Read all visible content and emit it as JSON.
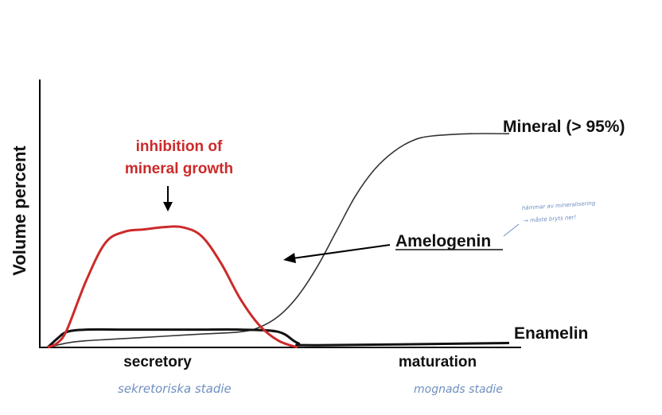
{
  "chart_data": {
    "type": "line",
    "ylabel": "Volume percent",
    "xlabel": "",
    "x_categories": [
      "secretory",
      "maturation"
    ],
    "ylim": [
      0,
      100
    ],
    "grid": false,
    "series": [
      {
        "name": "Mineral (> 95%)",
        "color": "#333333",
        "points": [
          [
            0,
            0
          ],
          [
            1,
            2
          ],
          [
            2,
            3
          ],
          [
            4,
            4
          ],
          [
            6,
            5
          ],
          [
            8,
            6
          ],
          [
            10,
            7
          ],
          [
            11,
            9
          ],
          [
            12,
            14
          ],
          [
            13,
            23
          ],
          [
            14,
            36
          ],
          [
            15,
            52
          ],
          [
            16,
            68
          ],
          [
            17,
            80
          ],
          [
            18,
            88
          ],
          [
            19,
            93
          ],
          [
            20,
            95
          ],
          [
            22,
            96
          ],
          [
            24,
            96
          ]
        ]
      },
      {
        "name": "Amelogenin",
        "color": "#cc2a2a",
        "points": [
          [
            0,
            0
          ],
          [
            0.5,
            2
          ],
          [
            1,
            8
          ],
          [
            2,
            30
          ],
          [
            3,
            47
          ],
          [
            4,
            52
          ],
          [
            5,
            53
          ],
          [
            6,
            54
          ],
          [
            7,
            54
          ],
          [
            8,
            50
          ],
          [
            9,
            38
          ],
          [
            10,
            22
          ],
          [
            11,
            10
          ],
          [
            12,
            3
          ],
          [
            13,
            0
          ]
        ]
      },
      {
        "name": "Enamelin",
        "color": "#111111",
        "points": [
          [
            0,
            0
          ],
          [
            0.5,
            4
          ],
          [
            1,
            7
          ],
          [
            2,
            8
          ],
          [
            4,
            8
          ],
          [
            6,
            8
          ],
          [
            8,
            8
          ],
          [
            10,
            8
          ],
          [
            12,
            7
          ],
          [
            13,
            2
          ],
          [
            14,
            1
          ],
          [
            24,
            2
          ]
        ]
      }
    ],
    "annotations": [
      {
        "text_lines": [
          "inhibition of",
          "mineral growth"
        ],
        "color": "#cc2a2a",
        "points_to": "Amelogenin"
      },
      {
        "text": "Amelogenin",
        "underlined": true,
        "points_to": "Amelogenin"
      }
    ]
  },
  "handwriting": {
    "secretory_note": "sekretoriska stadie",
    "maturation_note": "mognads stadie",
    "side_note_line1": "hämmar av mineralisering",
    "side_note_line2": "→ måste bryts ner!"
  },
  "colors": {
    "axis": "#000000",
    "handwriting": "#6f8fc0"
  }
}
